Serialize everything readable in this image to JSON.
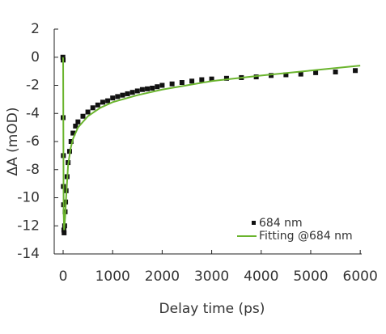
{
  "chart_data": {
    "type": "scatter",
    "x_label": "Delay time (ps)",
    "y_label": "ΔA (mOD)",
    "xlim": [
      -180,
      6030
    ],
    "ylim": [
      -14,
      2
    ],
    "xticks": [
      0,
      1000,
      2000,
      3000,
      4000,
      5000,
      6000
    ],
    "yticks": [
      2,
      0,
      -2,
      -4,
      -6,
      -8,
      -10,
      -12,
      -14
    ],
    "legend": "lower-right",
    "series": [
      {
        "name": "684 nm",
        "color": "#111111",
        "mode": "markers",
        "x": [
          -5,
          0,
          0,
          5,
          5,
          10,
          15,
          20,
          30,
          40,
          50,
          60,
          80,
          100,
          130,
          160,
          200,
          250,
          300,
          400,
          500,
          600,
          700,
          800,
          900,
          1000,
          1100,
          1200,
          1300,
          1400,
          1500,
          1600,
          1700,
          1800,
          1900,
          2000,
          2200,
          2400,
          2600,
          2800,
          3000,
          3300,
          3600,
          3900,
          4200,
          4500,
          4800,
          5100,
          5500,
          5900
        ],
        "values": [
          0,
          -0.2,
          -4.3,
          -7,
          -9.2,
          -10.5,
          -12.3,
          -12.5,
          -12,
          -11,
          -10.3,
          -9.5,
          -8.5,
          -7.5,
          -6.7,
          -6,
          -5.4,
          -4.9,
          -4.6,
          -4.2,
          -3.9,
          -3.6,
          -3.4,
          -3.2,
          -3.1,
          -2.9,
          -2.8,
          -2.7,
          -2.6,
          -2.5,
          -2.4,
          -2.3,
          -2.25,
          -2.2,
          -2.1,
          -2,
          -1.9,
          -1.8,
          -1.7,
          -1.6,
          -1.55,
          -1.5,
          -1.45,
          -1.4,
          -1.3,
          -1.25,
          -1.2,
          -1.1,
          -1.05,
          -0.95
        ]
      },
      {
        "name": "Fitting @684 nm",
        "color": "#6ab42d",
        "mode": "lines",
        "x": [
          -5,
          0,
          10,
          20,
          40,
          60,
          100,
          150,
          200,
          300,
          500,
          750,
          1000,
          1500,
          2000,
          3000,
          4000,
          5000,
          6000
        ],
        "values": [
          0,
          -0.1,
          -11,
          -12.3,
          -11.4,
          -10,
          -7.7,
          -6.5,
          -5.8,
          -5,
          -4.2,
          -3.6,
          -3.2,
          -2.7,
          -2.3,
          -1.7,
          -1.3,
          -0.95,
          -0.6
        ]
      }
    ]
  }
}
